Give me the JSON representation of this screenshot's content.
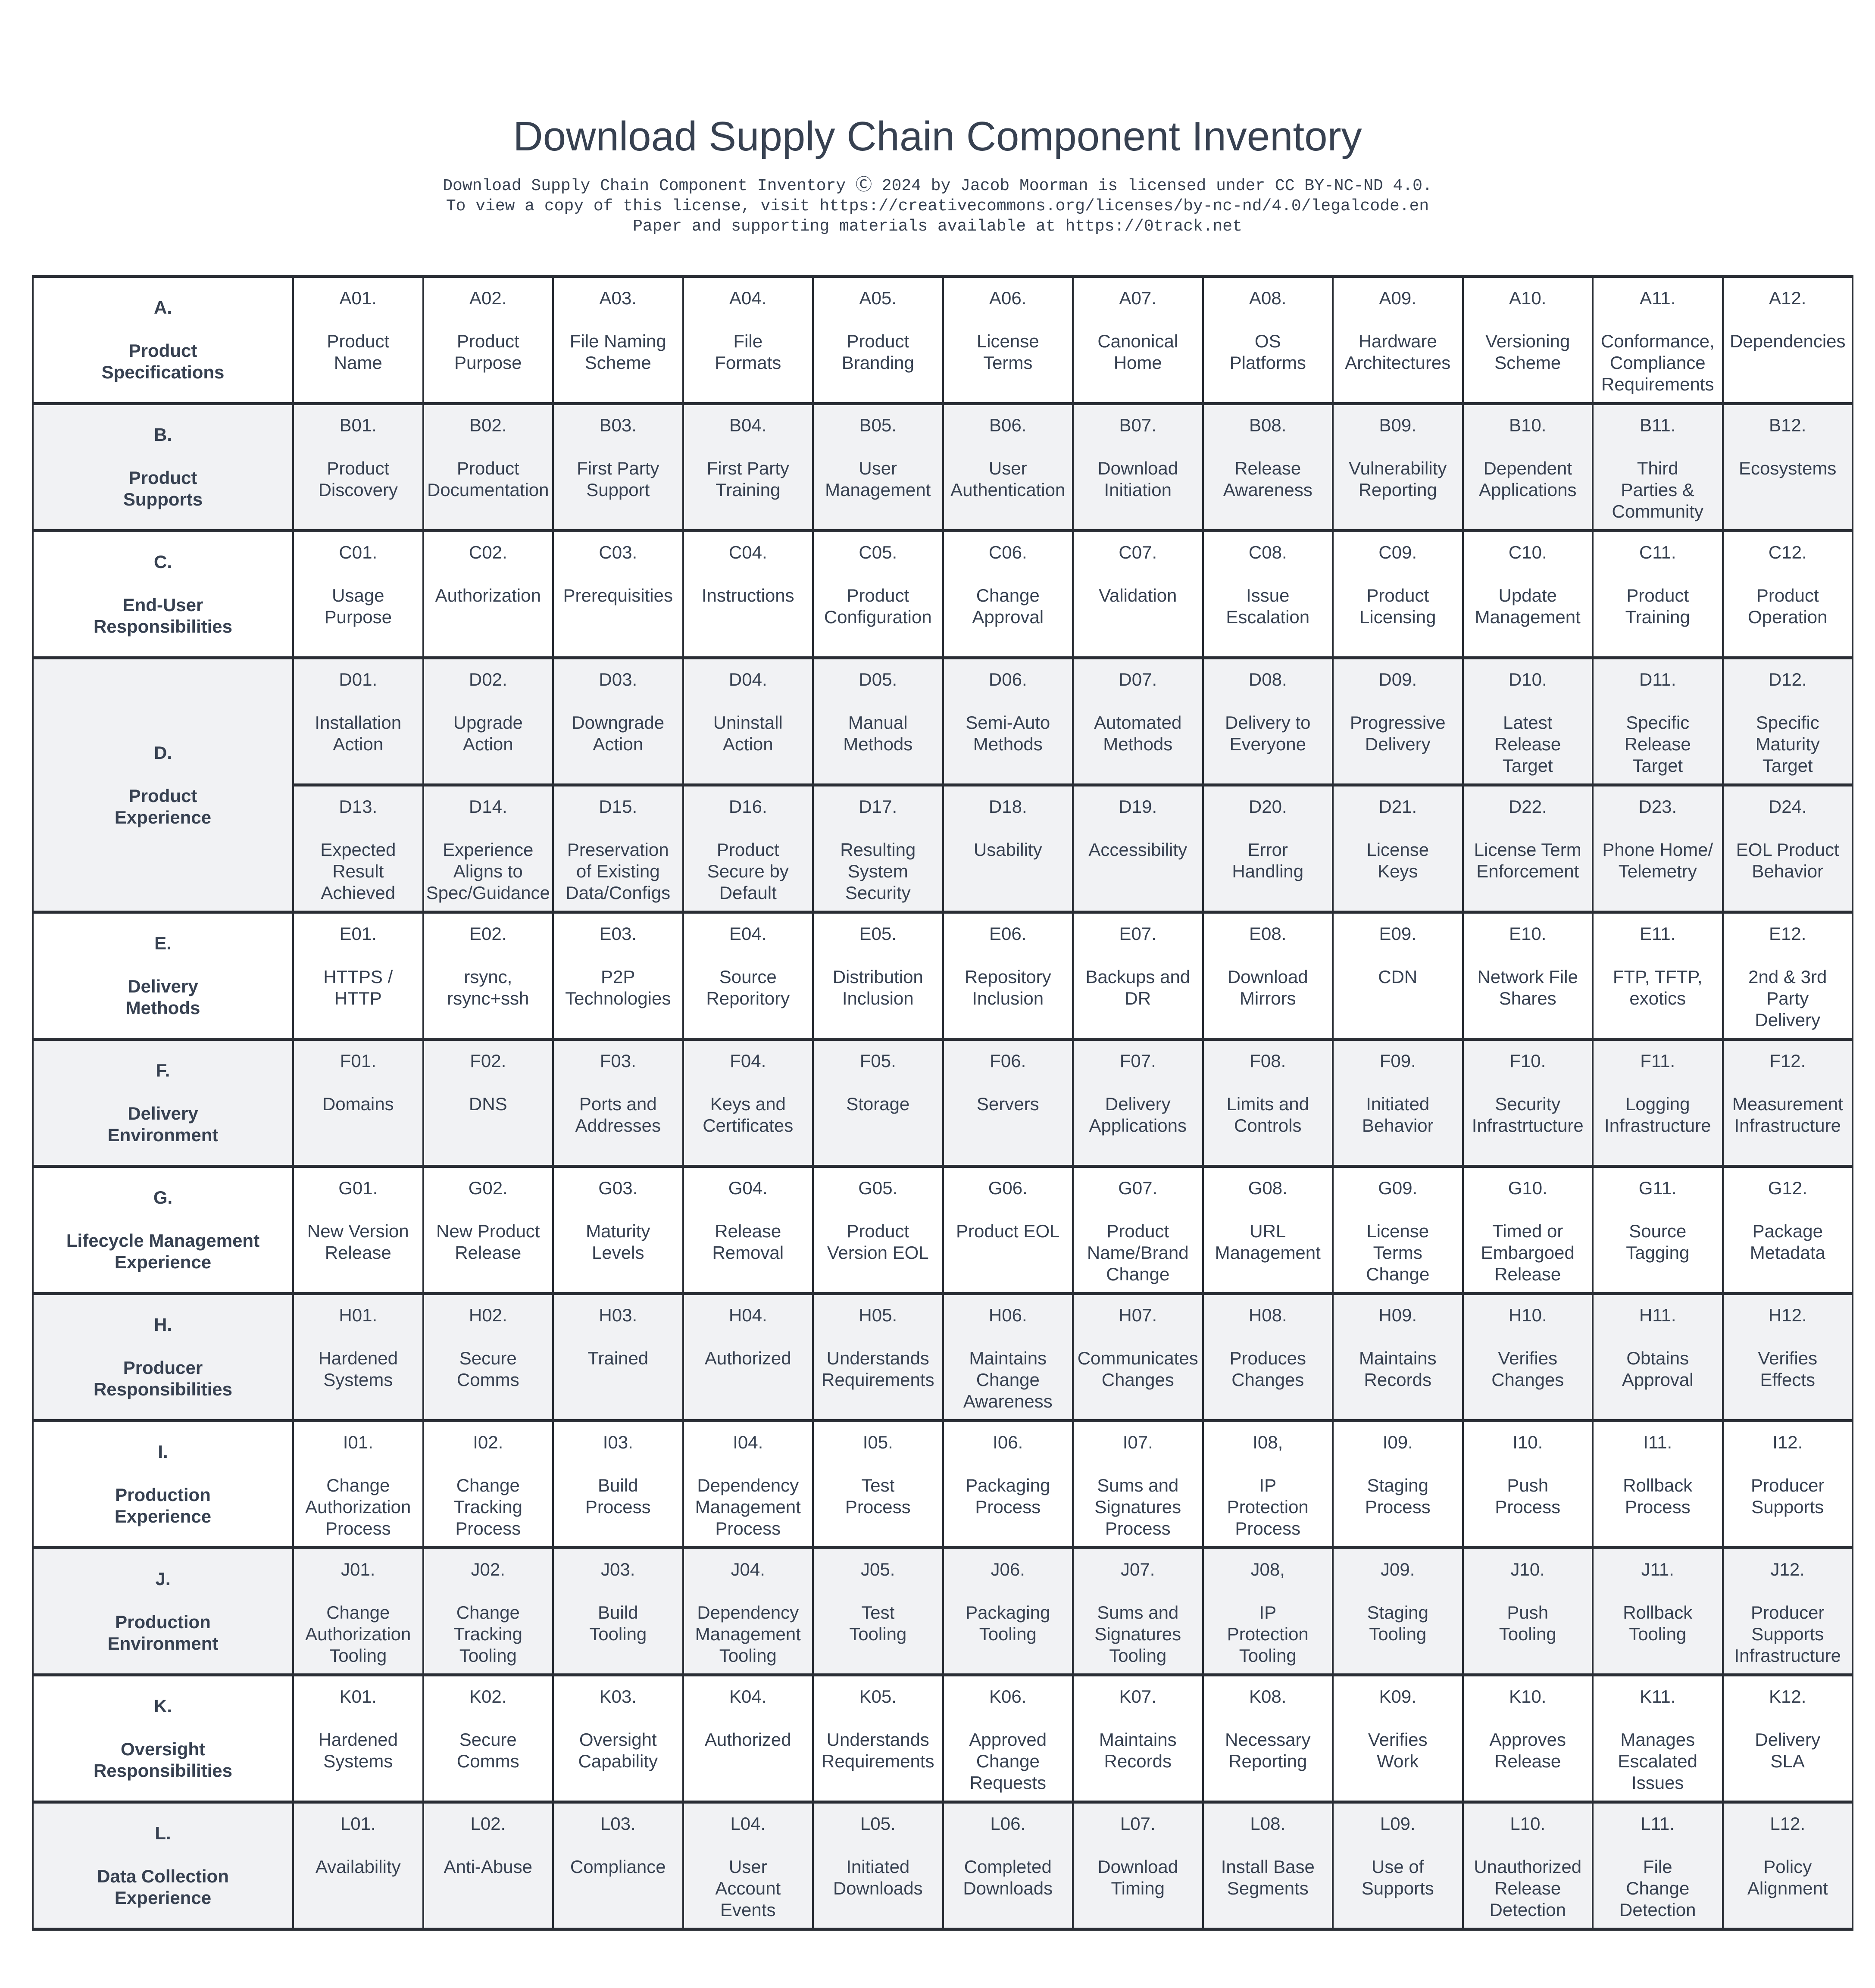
{
  "title": "Download Supply Chain Component Inventory",
  "license_lines": [
    "Download Supply Chain Component Inventory Ⓒ 2024 by Jacob Moorman is licensed under CC BY-NC-ND 4.0.",
    "To view a copy of this license, visit https://creativecommons.org/licenses/by-nc-nd/4.0/legalcode.en",
    "Paper and supporting materials available at https://0track.net"
  ],
  "colors": {
    "text": "#374151",
    "border": "#2a2e35",
    "alt_row": "#f1f2f4"
  },
  "rows": [
    {
      "code": "A.",
      "label": "Product\nSpecifications",
      "items": [
        [
          "A01.",
          "Product\nName"
        ],
        [
          "A02.",
          "Product\nPurpose"
        ],
        [
          "A03.",
          "File Naming\nScheme"
        ],
        [
          "A04.",
          "File\nFormats"
        ],
        [
          "A05.",
          "Product\nBranding"
        ],
        [
          "A06.",
          "License\nTerms"
        ],
        [
          "A07.",
          "Canonical\nHome"
        ],
        [
          "A08.",
          "OS\nPlatforms"
        ],
        [
          "A09.",
          "Hardware\nArchitectures"
        ],
        [
          "A10.",
          "Versioning\nScheme"
        ],
        [
          "A11.",
          "Conformance,\nCompliance\nRequirements"
        ],
        [
          "A12.",
          "Dependencies"
        ]
      ]
    },
    {
      "code": "B.",
      "label": "Product\nSupports",
      "items": [
        [
          "B01.",
          "Product\nDiscovery"
        ],
        [
          "B02.",
          "Product\nDocumentation"
        ],
        [
          "B03.",
          "First Party\nSupport"
        ],
        [
          "B04.",
          "First Party\nTraining"
        ],
        [
          "B05.",
          "User\nManagement"
        ],
        [
          "B06.",
          "User\nAuthentication"
        ],
        [
          "B07.",
          "Download\nInitiation"
        ],
        [
          "B08.",
          "Release\nAwareness"
        ],
        [
          "B09.",
          "Vulnerability\nReporting"
        ],
        [
          "B10.",
          "Dependent\nApplications"
        ],
        [
          "B11.",
          "Third\nParties &\nCommunity"
        ],
        [
          "B12.",
          "Ecosystems"
        ]
      ]
    },
    {
      "code": "C.",
      "label": "End-User\nResponsibilities",
      "items": [
        [
          "C01.",
          "Usage\nPurpose"
        ],
        [
          "C02.",
          "Authorization"
        ],
        [
          "C03.",
          "Prerequisities"
        ],
        [
          "C04.",
          "Instructions"
        ],
        [
          "C05.",
          "Product\nConfiguration"
        ],
        [
          "C06.",
          "Change\nApproval"
        ],
        [
          "C07.",
          "Validation"
        ],
        [
          "C08.",
          "Issue\nEscalation"
        ],
        [
          "C09.",
          "Product\nLicensing"
        ],
        [
          "C10.",
          "Update\nManagement"
        ],
        [
          "C11.",
          "Product\nTraining"
        ],
        [
          "C12.",
          "Product\nOperation"
        ]
      ]
    },
    {
      "code": "D.",
      "label": "Product\nExperience",
      "items": [
        [
          "D01.",
          "Installation\nAction"
        ],
        [
          "D02.",
          "Upgrade\nAction"
        ],
        [
          "D03.",
          "Downgrade\nAction"
        ],
        [
          "D04.",
          "Uninstall\nAction"
        ],
        [
          "D05.",
          "Manual\nMethods"
        ],
        [
          "D06.",
          "Semi-Auto\nMethods"
        ],
        [
          "D07.",
          "Automated\nMethods"
        ],
        [
          "D08.",
          "Delivery to\nEveryone"
        ],
        [
          "D09.",
          "Progressive\nDelivery"
        ],
        [
          "D10.",
          "Latest\nRelease\nTarget"
        ],
        [
          "D11.",
          "Specific\nRelease\nTarget"
        ],
        [
          "D12.",
          "Specific\nMaturity\nTarget"
        ]
      ],
      "items2": [
        [
          "D13.",
          "Expected\nResult\nAchieved"
        ],
        [
          "D14.",
          "Experience\nAligns to\nSpec/Guidance"
        ],
        [
          "D15.",
          "Preservation\nof Existing\nData/Configs"
        ],
        [
          "D16.",
          "Product\nSecure by\nDefault"
        ],
        [
          "D17.",
          "Resulting\nSystem\nSecurity"
        ],
        [
          "D18.",
          "Usability"
        ],
        [
          "D19.",
          "Accessibility"
        ],
        [
          "D20.",
          "Error\nHandling"
        ],
        [
          "D21.",
          "License\nKeys"
        ],
        [
          "D22.",
          "License Term\nEnforcement"
        ],
        [
          "D23.",
          "Phone Home/\nTelemetry"
        ],
        [
          "D24.",
          "EOL Product\nBehavior"
        ]
      ]
    },
    {
      "code": "E.",
      "label": "Delivery\nMethods",
      "items": [
        [
          "E01.",
          "HTTPS /\nHTTP"
        ],
        [
          "E02.",
          "rsync,\nrsync+ssh"
        ],
        [
          "E03.",
          "P2P\nTechnologies"
        ],
        [
          "E04.",
          "Source\nReporitory"
        ],
        [
          "E05.",
          "Distribution\nInclusion"
        ],
        [
          "E06.",
          "Repository\nInclusion"
        ],
        [
          "E07.",
          "Backups and\nDR"
        ],
        [
          "E08.",
          "Download\nMirrors"
        ],
        [
          "E09.",
          "CDN"
        ],
        [
          "E10.",
          "Network File\nShares"
        ],
        [
          "E11.",
          "FTP, TFTP,\nexotics"
        ],
        [
          "E12.",
          "2nd & 3rd\nParty\nDelivery"
        ]
      ]
    },
    {
      "code": "F.",
      "label": "Delivery\nEnvironment",
      "items": [
        [
          "F01.",
          "Domains"
        ],
        [
          "F02.",
          "DNS"
        ],
        [
          "F03.",
          "Ports and\nAddresses"
        ],
        [
          "F04.",
          "Keys and\nCertificates"
        ],
        [
          "F05.",
          "Storage"
        ],
        [
          "F06.",
          "Servers"
        ],
        [
          "F07.",
          "Delivery\nApplications"
        ],
        [
          "F08.",
          "Limits and\nControls"
        ],
        [
          "F09.",
          "Initiated\nBehavior"
        ],
        [
          "F10.",
          "Security\nInfrastrtucture"
        ],
        [
          "F11.",
          "Logging\nInfrastructure"
        ],
        [
          "F12.",
          "Measurement\nInfrastructure"
        ]
      ]
    },
    {
      "code": "G.",
      "label": "Lifecycle Management\nExperience",
      "items": [
        [
          "G01.",
          "New Version\nRelease"
        ],
        [
          "G02.",
          "New Product\nRelease"
        ],
        [
          "G03.",
          "Maturity\nLevels"
        ],
        [
          "G04.",
          "Release\nRemoval"
        ],
        [
          "G05.",
          "Product\nVersion EOL"
        ],
        [
          "G06.",
          "Product EOL"
        ],
        [
          "G07.",
          "Product\nName/Brand\nChange"
        ],
        [
          "G08.",
          "URL\nManagement"
        ],
        [
          "G09.",
          "License\nTerms\nChange"
        ],
        [
          "G10.",
          "Timed or\nEmbargoed\nRelease"
        ],
        [
          "G11.",
          "Source\nTagging"
        ],
        [
          "G12.",
          "Package\nMetadata"
        ]
      ]
    },
    {
      "code": "H.",
      "label": "Producer\nResponsibilities",
      "items": [
        [
          "H01.",
          "Hardened\nSystems"
        ],
        [
          "H02.",
          "Secure\nComms"
        ],
        [
          "H03.",
          "Trained"
        ],
        [
          "H04.",
          "Authorized"
        ],
        [
          "H05.",
          "Understands\nRequirements"
        ],
        [
          "H06.",
          "Maintains\nChange\nAwareness"
        ],
        [
          "H07.",
          "Communicates\nChanges"
        ],
        [
          "H08.",
          "Produces\nChanges"
        ],
        [
          "H09.",
          "Maintains\nRecords"
        ],
        [
          "H10.",
          "Verifies\nChanges"
        ],
        [
          "H11.",
          "Obtains\nApproval"
        ],
        [
          "H12.",
          "Verifies\nEffects"
        ]
      ]
    },
    {
      "code": "I.",
      "label": "Production\nExperience",
      "items": [
        [
          "I01.",
          "Change\nAuthorization\nProcess"
        ],
        [
          "I02.",
          "Change\nTracking\nProcess"
        ],
        [
          "I03.",
          "Build\nProcess"
        ],
        [
          "I04.",
          "Dependency\nManagement\nProcess"
        ],
        [
          "I05.",
          "Test\nProcess"
        ],
        [
          "I06.",
          "Packaging\nProcess"
        ],
        [
          "I07.",
          "Sums and\nSignatures\nProcess"
        ],
        [
          "I08,",
          "IP\nProtection\nProcess"
        ],
        [
          "I09.",
          "Staging\nProcess"
        ],
        [
          "I10.",
          "Push\nProcess"
        ],
        [
          "I11.",
          "Rollback\nProcess"
        ],
        [
          "I12.",
          "Producer\nSupports"
        ]
      ]
    },
    {
      "code": "J.",
      "label": "Production\nEnvironment",
      "items": [
        [
          "J01.",
          "Change\nAuthorization\nTooling"
        ],
        [
          "J02.",
          "Change\nTracking\nTooling"
        ],
        [
          "J03.",
          "Build\nTooling"
        ],
        [
          "J04.",
          "Dependency\nManagement\nTooling"
        ],
        [
          "J05.",
          "Test\nTooling"
        ],
        [
          "J06.",
          "Packaging\nTooling"
        ],
        [
          "J07.",
          "Sums and\nSignatures\nTooling"
        ],
        [
          "J08,",
          "IP\nProtection\nTooling"
        ],
        [
          "J09.",
          "Staging\nTooling"
        ],
        [
          "J10.",
          "Push\nTooling"
        ],
        [
          "J11.",
          "Rollback\nTooling"
        ],
        [
          "J12.",
          "Producer\nSupports\nInfrastructure"
        ]
      ]
    },
    {
      "code": "K.",
      "label": "Oversight\nResponsibilities",
      "items": [
        [
          "K01.",
          "Hardened\nSystems"
        ],
        [
          "K02.",
          "Secure\nComms"
        ],
        [
          "K03.",
          "Oversight\nCapability"
        ],
        [
          "K04.",
          "Authorized"
        ],
        [
          "K05.",
          "Understands\nRequirements"
        ],
        [
          "K06.",
          "Approved\nChange\nRequests"
        ],
        [
          "K07.",
          "Maintains\nRecords"
        ],
        [
          "K08.",
          "Necessary\nReporting"
        ],
        [
          "K09.",
          "Verifies\nWork"
        ],
        [
          "K10.",
          "Approves\nRelease"
        ],
        [
          "K11.",
          "Manages\nEscalated\nIssues"
        ],
        [
          "K12.",
          "Delivery\nSLA"
        ]
      ]
    },
    {
      "code": "L.",
      "label": "Data Collection\nExperience",
      "items": [
        [
          "L01.",
          "Availability"
        ],
        [
          "L02.",
          "Anti-Abuse"
        ],
        [
          "L03.",
          "Compliance"
        ],
        [
          "L04.",
          "User\nAccount\nEvents"
        ],
        [
          "L05.",
          "Initiated\nDownloads"
        ],
        [
          "L06.",
          "Completed\nDownloads"
        ],
        [
          "L07.",
          "Download\nTiming"
        ],
        [
          "L08.",
          "Install Base\nSegments"
        ],
        [
          "L09.",
          "Use of\nSupports"
        ],
        [
          "L10.",
          "Unauthorized\nRelease\nDetection"
        ],
        [
          "L11.",
          "File\nChange\nDetection"
        ],
        [
          "L12.",
          "Policy\nAlignment"
        ]
      ]
    }
  ]
}
